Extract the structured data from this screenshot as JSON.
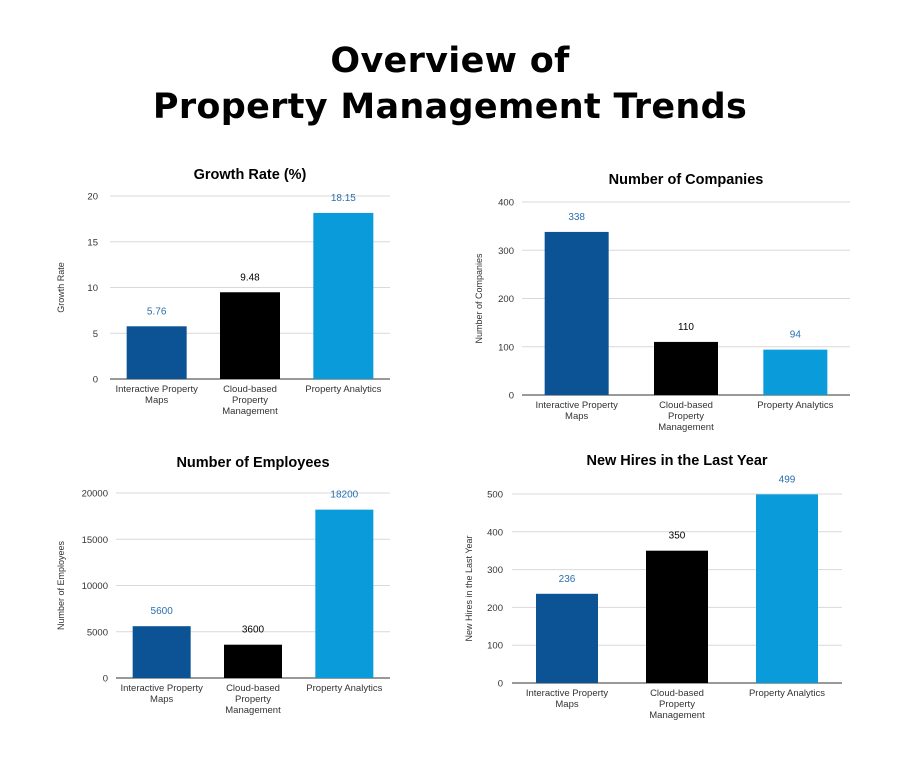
{
  "page": {
    "title_line1": "Overview of",
    "title_line2": "Property Management Trends"
  },
  "colors": {
    "dark_blue": "#0b5394",
    "black": "#000000",
    "light_blue": "#0a9bdb",
    "label_blue": "#2a6fb0",
    "grid": "#d9d9d9",
    "axis_text": "#333333"
  },
  "chart_data": [
    {
      "type": "bar",
      "title": "Growth Rate (%)",
      "xlabel": "",
      "ylabel": "Growth Rate",
      "categories": [
        "Interactive Property Maps",
        "Cloud-based Property Management",
        "Property Analytics"
      ],
      "values": [
        5.76,
        9.48,
        18.15
      ],
      "value_labels": [
        "5.76",
        "9.48",
        "18.15"
      ],
      "ylim": [
        0,
        20
      ],
      "yticks": [
        0,
        5,
        10,
        15,
        20
      ],
      "grid": true
    },
    {
      "type": "bar",
      "title": "Number of Companies",
      "xlabel": "",
      "ylabel": "Number of Companies",
      "categories": [
        "Interactive Property Maps",
        "Cloud-based Property Management",
        "Property Analytics"
      ],
      "values": [
        338,
        110,
        94
      ],
      "value_labels": [
        "338",
        "110",
        "94"
      ],
      "ylim": [
        0,
        400
      ],
      "yticks": [
        0,
        100,
        200,
        300,
        400
      ],
      "grid": true
    },
    {
      "type": "bar",
      "title": "Number of Employees",
      "xlabel": "",
      "ylabel": "Number of Employees",
      "categories": [
        "Interactive Property Maps",
        "Cloud-based Property Management",
        "Property Analytics"
      ],
      "values": [
        5600,
        3600,
        18200
      ],
      "value_labels": [
        "5600",
        "3600",
        "18200"
      ],
      "ylim": [
        0,
        20000
      ],
      "yticks": [
        0,
        5000,
        10000,
        15000,
        20000
      ],
      "grid": true
    },
    {
      "type": "bar",
      "title": "New Hires in the Last Year",
      "xlabel": "",
      "ylabel": "New Hires in the Last Year",
      "categories": [
        "Interactive Property Maps",
        "Cloud-based Property Management",
        "Property Analytics"
      ],
      "values": [
        236,
        350,
        499
      ],
      "value_labels": [
        "236",
        "350",
        "499"
      ],
      "ylim": [
        0,
        500
      ],
      "yticks": [
        0,
        100,
        200,
        300,
        400,
        500
      ],
      "grid": true
    }
  ]
}
